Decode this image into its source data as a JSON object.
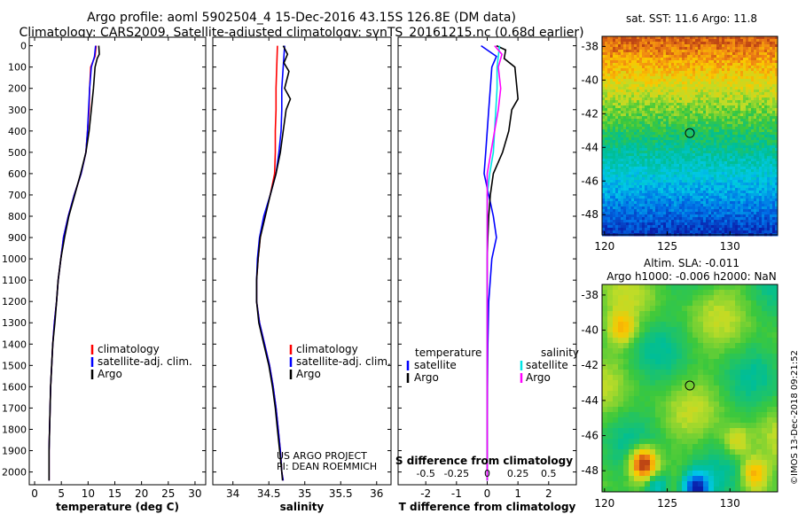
{
  "header": {
    "line1": "Argo profile: aoml 5902504_4 15-Dec-2016 43.15S 126.8E (DM data)",
    "line2": "Climatology: CARS2009. Satellite-adjusted climatology: synTS_20161215.nc (0.68d earlier)"
  },
  "colors": {
    "climatology": "#ff0000",
    "satellite": "#0000ff",
    "argo": "#000000",
    "sat_salinity": "#00e5e5",
    "argo_salinity": "#ff00ff"
  },
  "chart_data": [
    {
      "type": "line",
      "xlabel": "temperature (deg C)",
      "xticks": [
        "0",
        "5",
        "10",
        "15",
        "20",
        "25",
        "30"
      ],
      "xlim": [
        -1,
        32
      ],
      "ylabel": "",
      "yticks": [
        "0",
        "100",
        "200",
        "300",
        "400",
        "500",
        "600",
        "700",
        "800",
        "900",
        "1000",
        "1100",
        "1200",
        "1300",
        "1400",
        "1500",
        "1600",
        "1700",
        "1800",
        "1900",
        "2000"
      ],
      "ylim": [
        2060,
        -40
      ],
      "legend": [
        "climatology",
        "satellite-adj. clim.",
        "Argo"
      ],
      "series": [
        {
          "name": "climatology",
          "x": [
            11.5,
            11.3,
            10.5,
            10.3,
            10.2,
            9.9,
            9.6,
            8.7,
            7.4,
            6.3,
            5.4,
            4.9,
            4.4,
            4.1,
            3.7,
            3.4,
            3.2,
            3.0,
            2.9,
            2.8,
            2.7,
            2.7
          ],
          "y": [
            0,
            50,
            100,
            200,
            300,
            400,
            500,
            600,
            700,
            800,
            900,
            1000,
            1100,
            1200,
            1300,
            1400,
            1500,
            1600,
            1700,
            1800,
            1900,
            2040
          ]
        },
        {
          "name": "satellite-adj. clim.",
          "x": [
            11.4,
            11.2,
            10.6,
            10.3,
            10.1,
            9.9,
            9.6,
            8.7,
            7.4,
            6.3,
            5.4,
            4.9,
            4.4,
            4.1,
            3.7,
            3.4,
            3.2,
            3.0,
            2.9,
            2.8,
            2.7,
            2.7
          ],
          "y": [
            0,
            50,
            100,
            200,
            300,
            400,
            500,
            600,
            700,
            800,
            900,
            1000,
            1100,
            1200,
            1300,
            1400,
            1500,
            1600,
            1700,
            1800,
            1900,
            2040
          ]
        },
        {
          "name": "Argo",
          "x": [
            12.0,
            12.1,
            11.7,
            11.3,
            11.0,
            10.6,
            10.2,
            9.6,
            8.6,
            7.5,
            6.4,
            5.6,
            4.9,
            4.4,
            4.1,
            3.8,
            3.4,
            3.2,
            3.0,
            2.9,
            2.8,
            2.7,
            2.7
          ],
          "y": [
            0,
            40,
            60,
            100,
            200,
            300,
            400,
            500,
            600,
            700,
            800,
            900,
            1000,
            1100,
            1200,
            1300,
            1400,
            1500,
            1600,
            1700,
            1800,
            1900,
            2040
          ]
        }
      ]
    },
    {
      "type": "line",
      "xlabel": "salinity",
      "xticks": [
        "34",
        "34.5",
        "35",
        "35.5",
        "36"
      ],
      "xlim": [
        33.72,
        36.2
      ],
      "yticks": [],
      "ylim": [
        2060,
        -40
      ],
      "legend": [
        "climatology",
        "satellite-adj. clim.",
        "Argo"
      ],
      "annotation": [
        "US ARGO PROJECT",
        "PI: DEAN ROEMMICH"
      ],
      "series": [
        {
          "name": "climatology",
          "x": [
            34.62,
            34.61,
            34.6,
            34.6,
            34.59,
            34.59,
            34.58,
            34.52,
            34.44,
            34.38,
            34.35,
            34.33,
            34.33,
            34.37,
            34.44,
            34.51,
            34.56,
            34.6,
            34.63,
            34.66,
            34.68,
            34.7
          ],
          "y": [
            0,
            100,
            200,
            300,
            400,
            500,
            600,
            700,
            800,
            900,
            1000,
            1100,
            1200,
            1300,
            1400,
            1500,
            1600,
            1700,
            1800,
            1900,
            2000,
            2040
          ]
        },
        {
          "name": "satellite-adj. clim.",
          "x": [
            34.72,
            34.7,
            34.68,
            34.68,
            34.67,
            34.64,
            34.6,
            34.52,
            34.43,
            34.37,
            34.34,
            34.33,
            34.33,
            34.37,
            34.44,
            34.51,
            34.56,
            34.6,
            34.63,
            34.66,
            34.68,
            34.7
          ],
          "y": [
            0,
            100,
            200,
            300,
            400,
            500,
            600,
            700,
            800,
            900,
            1000,
            1100,
            1200,
            1300,
            1400,
            1500,
            1600,
            1700,
            1800,
            1900,
            2000,
            2040
          ]
        },
        {
          "name": "Argo",
          "x": [
            34.7,
            34.76,
            34.71,
            34.78,
            34.72,
            34.8,
            34.74,
            34.7,
            34.66,
            34.6,
            34.52,
            34.45,
            34.38,
            34.35,
            34.33,
            34.33,
            34.36,
            34.43,
            34.5,
            34.55,
            34.59,
            34.62,
            34.65,
            34.68,
            34.69
          ],
          "y": [
            0,
            40,
            80,
            120,
            200,
            250,
            300,
            400,
            500,
            600,
            700,
            800,
            900,
            1000,
            1100,
            1200,
            1300,
            1400,
            1500,
            1600,
            1700,
            1800,
            1900,
            2000,
            2040
          ]
        }
      ]
    },
    {
      "type": "line",
      "xlabel": "T difference from climatology",
      "xticks": [
        "-2",
        "-1",
        "0",
        "1",
        "2"
      ],
      "xlim": [
        -2.9,
        2.9
      ],
      "x2label": "S difference from climatology",
      "x2ticks": [
        "-0.5",
        "-0.25",
        "0",
        "0.25",
        "0.5"
      ],
      "yticks": [],
      "ylim": [
        2060,
        -40
      ],
      "legend_left_title": "temperature",
      "legend_left": [
        "satellite",
        "Argo"
      ],
      "legend_right_title": "salinity",
      "legend_right": [
        "satellite",
        "Argo"
      ],
      "series": [
        {
          "name": "satellite",
          "quantity": "temperature",
          "x": [
            -0.2,
            0.3,
            0.15,
            0.1,
            0.05,
            0.0,
            -0.05,
            -0.1,
            0.05,
            0.2,
            0.3,
            0.15,
            0.05,
            0.02,
            0.01,
            0.0
          ],
          "y": [
            0,
            50,
            100,
            200,
            300,
            400,
            500,
            600,
            700,
            800,
            900,
            1000,
            1200,
            1400,
            1600,
            2040
          ]
        },
        {
          "name": "Argo",
          "quantity": "temperature",
          "x": [
            0.3,
            0.6,
            0.55,
            0.9,
            1.0,
            0.8,
            0.7,
            0.5,
            0.2,
            0.1,
            0.05,
            0.02,
            0.0,
            0.0,
            0.0
          ],
          "y": [
            0,
            20,
            60,
            100,
            250,
            300,
            400,
            500,
            600,
            700,
            800,
            900,
            1000,
            1400,
            2040
          ]
        },
        {
          "name": "satellite",
          "quantity": "salinity",
          "x": [
            0.1,
            0.08,
            0.08,
            0.07,
            0.06,
            0.05,
            0.02,
            0.0,
            0.0,
            0.0,
            0.0
          ],
          "y": [
            0,
            100,
            200,
            300,
            400,
            500,
            600,
            700,
            1000,
            1500,
            2040
          ]
        },
        {
          "name": "Argo",
          "quantity": "salinity",
          "x": [
            0.06,
            0.12,
            0.09,
            0.11,
            0.09,
            0.06,
            0.03,
            0.0,
            0.0,
            0.0
          ],
          "y": [
            0,
            40,
            100,
            200,
            300,
            400,
            500,
            600,
            1000,
            2040
          ]
        }
      ]
    }
  ],
  "maps": [
    {
      "name": "sst",
      "title": "sat. SST: 11.6 Argo: 11.8",
      "xticks": [
        "120",
        "125",
        "130"
      ],
      "yticks": [
        "-38",
        "-40",
        "-42",
        "-44",
        "-46",
        "-48"
      ],
      "lon": [
        119.8,
        133.8
      ],
      "lat": [
        -49.2,
        -37.4
      ],
      "marker": {
        "lon": 126.8,
        "lat": -43.15
      }
    },
    {
      "name": "sla",
      "title1": "Altim. SLA: -0.011",
      "title2": "Argo h1000: -0.006 h2000: NaN",
      "xticks": [
        "120",
        "125",
        "130"
      ],
      "yticks": [
        "-38",
        "-40",
        "-42",
        "-44",
        "-46",
        "-48"
      ],
      "lon": [
        119.8,
        133.8
      ],
      "lat": [
        -49.2,
        -37.4
      ],
      "marker": {
        "lon": 126.8,
        "lat": -43.15
      }
    }
  ],
  "footer": {
    "stamp": "©IMOS 13-Dec-2018 09:21:52"
  }
}
